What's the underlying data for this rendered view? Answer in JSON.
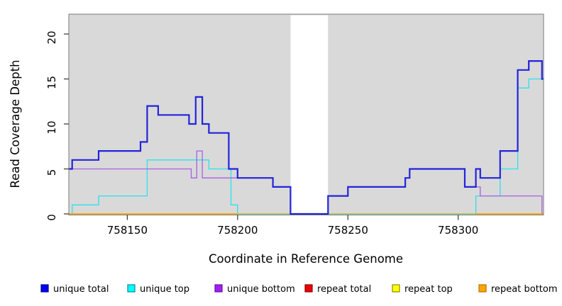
{
  "x_axis": {
    "label": "Coordinate in Reference Genome",
    "ticks": [
      758150,
      758200,
      758250,
      758300
    ]
  },
  "y_axis": {
    "label": "Read Coverage Depth",
    "ticks": [
      0,
      5,
      10,
      15,
      20
    ]
  },
  "legend": [
    {
      "label": "unique total",
      "fill": "#0000ee",
      "border": "#000090"
    },
    {
      "label": "unique top",
      "fill": "#00ffff",
      "border": "#008b9b"
    },
    {
      "label": "unique bottom",
      "fill": "#a020f0",
      "border": "#6a0dad"
    },
    {
      "label": "repeat total",
      "fill": "#ee0000",
      "border": "#8b0000"
    },
    {
      "label": "repeat top",
      "fill": "#ffff00",
      "border": "#8b8b00"
    },
    {
      "label": "repeat bottom",
      "fill": "#ffa500",
      "border": "#b87400"
    }
  ],
  "chart_data": {
    "type": "line",
    "step": true,
    "title": "",
    "xlabel": "Coordinate in Reference Genome",
    "ylabel": "Read Coverage Depth",
    "xlim": [
      758123.5,
      758338.7
    ],
    "ylim": [
      0,
      22.2
    ],
    "grid": false,
    "plot_background": "#d9d9d9",
    "box_color": "#7a7a7a",
    "masked_white_region": {
      "x_start": 758224,
      "x_end": 758241,
      "color": "#ffffff"
    },
    "zero_overlap_segment": {
      "x_start": 758200,
      "x_end": 758308,
      "y": 0,
      "color": "#8fd6a0"
    },
    "series": [
      {
        "name": "unique total",
        "color": "#2323dc",
        "width": 2.2,
        "points": [
          [
            758123.5,
            5
          ],
          [
            758125,
            6
          ],
          [
            758137,
            7
          ],
          [
            758156,
            8
          ],
          [
            758159,
            12
          ],
          [
            758164,
            11
          ],
          [
            758178,
            10
          ],
          [
            758181,
            13
          ],
          [
            758184,
            10
          ],
          [
            758187,
            9
          ],
          [
            758196,
            5
          ],
          [
            758200,
            4
          ],
          [
            758216,
            3
          ],
          [
            758224,
            0
          ],
          [
            758241,
            2
          ],
          [
            758250,
            3
          ],
          [
            758276,
            4
          ],
          [
            758278,
            5
          ],
          [
            758303,
            3
          ],
          [
            758308,
            5
          ],
          [
            758310,
            4
          ],
          [
            758319,
            7
          ],
          [
            758327,
            16
          ],
          [
            758332,
            17
          ],
          [
            758338,
            15
          ]
        ],
        "x_end": 758338.7
      },
      {
        "name": "unique top",
        "color": "#2ae2ee",
        "width": 1.3,
        "points": [
          [
            758123.5,
            0
          ],
          [
            758125,
            1
          ],
          [
            758137,
            2
          ],
          [
            758159,
            6
          ],
          [
            758187,
            5
          ],
          [
            758197,
            1
          ],
          [
            758200,
            0
          ],
          [
            758308,
            2
          ],
          [
            758319,
            5
          ],
          [
            758327,
            14
          ],
          [
            758332,
            15
          ]
        ],
        "x_end": 758338.7
      },
      {
        "name": "unique bottom",
        "color": "#ab5fe2",
        "width": 1.3,
        "points": [
          [
            758123.5,
            5
          ],
          [
            758179,
            4
          ],
          [
            758181.5,
            7
          ],
          [
            758184,
            4
          ],
          [
            758216,
            3
          ],
          [
            758224,
            0
          ],
          [
            758241,
            2
          ],
          [
            758250,
            3
          ],
          [
            758276,
            4
          ],
          [
            758278,
            5
          ],
          [
            758303,
            3
          ],
          [
            758310,
            2
          ],
          [
            758338,
            0
          ]
        ],
        "x_end": 758338.7
      },
      {
        "name": "repeat total",
        "color": "#ee0000",
        "width": 1.3,
        "points": [
          [
            758123.5,
            0
          ]
        ],
        "x_end": 758338.7
      },
      {
        "name": "repeat top",
        "color": "#ffff00",
        "width": 1.3,
        "points": [
          [
            758123.5,
            0
          ]
        ],
        "x_end": 758338.7
      },
      {
        "name": "repeat bottom",
        "color": "#ffa500",
        "width": 1.6,
        "points": [
          [
            758123.5,
            0
          ]
        ],
        "x_end": 758338.7
      }
    ]
  }
}
